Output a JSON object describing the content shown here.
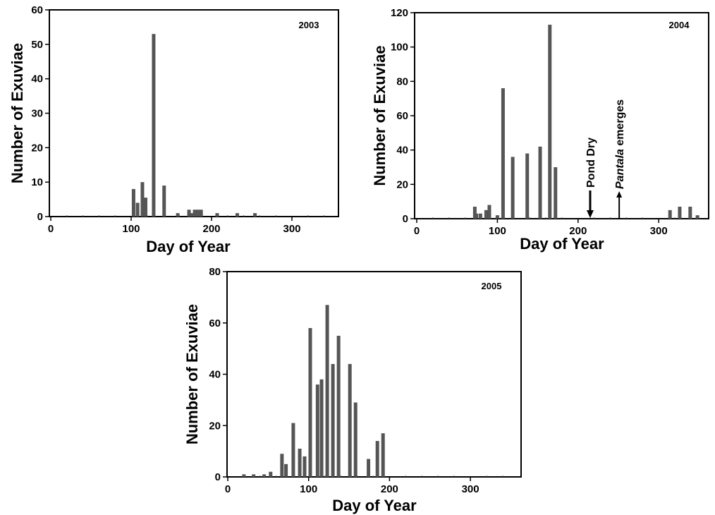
{
  "chart_data": [
    {
      "type": "bar",
      "title": "2003",
      "xlabel": "Day of Year",
      "ylabel": "Number of Exuviae",
      "xlim": [
        0,
        360
      ],
      "ylim": [
        0,
        60
      ],
      "xticks": [
        0,
        100,
        200,
        300
      ],
      "yticks": [
        0,
        10,
        20,
        30,
        40,
        50,
        60
      ],
      "grid": false,
      "points": [
        {
          "x": 103,
          "y": 8
        },
        {
          "x": 108,
          "y": 4
        },
        {
          "x": 114,
          "y": 10
        },
        {
          "x": 118,
          "y": 5.5
        },
        {
          "x": 128,
          "y": 53
        },
        {
          "x": 141,
          "y": 9
        },
        {
          "x": 158,
          "y": 1
        },
        {
          "x": 172,
          "y": 2
        },
        {
          "x": 176,
          "y": 1
        },
        {
          "x": 179,
          "y": 2
        },
        {
          "x": 183,
          "y": 2
        },
        {
          "x": 187,
          "y": 2
        },
        {
          "x": 207,
          "y": 1
        },
        {
          "x": 232,
          "y": 1
        },
        {
          "x": 254,
          "y": 1
        }
      ]
    },
    {
      "type": "bar",
      "title": "2004",
      "xlabel": "Day of Year",
      "ylabel": "Number of Exuviae",
      "xlim": [
        0,
        360
      ],
      "ylim": [
        0,
        120
      ],
      "xticks": [
        0,
        100,
        200,
        300
      ],
      "yticks": [
        0,
        20,
        40,
        60,
        80,
        100,
        120
      ],
      "grid": false,
      "points": [
        {
          "x": 72,
          "y": 7
        },
        {
          "x": 74,
          "y": 3
        },
        {
          "x": 79,
          "y": 3
        },
        {
          "x": 86,
          "y": 5
        },
        {
          "x": 90,
          "y": 8
        },
        {
          "x": 100,
          "y": 2
        },
        {
          "x": 107,
          "y": 76
        },
        {
          "x": 119,
          "y": 36
        },
        {
          "x": 137,
          "y": 38
        },
        {
          "x": 153,
          "y": 42
        },
        {
          "x": 165,
          "y": 113
        },
        {
          "x": 172,
          "y": 30
        },
        {
          "x": 314,
          "y": 5
        },
        {
          "x": 326,
          "y": 7
        },
        {
          "x": 339,
          "y": 7
        },
        {
          "x": 348,
          "y": 2
        }
      ],
      "annotations": [
        {
          "text": "Pond Dry",
          "x": 215,
          "arrow": "down"
        },
        {
          "text_italic": "Pantala",
          "text": " emerges",
          "x": 251,
          "arrow": "up"
        }
      ]
    },
    {
      "type": "bar",
      "title": "2005",
      "xlabel": "Day of Year",
      "ylabel": "Number of Exuviae",
      "xlim": [
        0,
        360
      ],
      "ylim": [
        0,
        80
      ],
      "xticks": [
        0,
        100,
        200,
        300
      ],
      "yticks": [
        0,
        20,
        40,
        60,
        80
      ],
      "grid": false,
      "points": [
        {
          "x": 20,
          "y": 1
        },
        {
          "x": 32,
          "y": 1
        },
        {
          "x": 45,
          "y": 1
        },
        {
          "x": 53,
          "y": 2
        },
        {
          "x": 67,
          "y": 9
        },
        {
          "x": 72,
          "y": 5
        },
        {
          "x": 81,
          "y": 21
        },
        {
          "x": 89,
          "y": 11
        },
        {
          "x": 95,
          "y": 8
        },
        {
          "x": 102,
          "y": 58
        },
        {
          "x": 111,
          "y": 36
        },
        {
          "x": 116,
          "y": 38
        },
        {
          "x": 123,
          "y": 67
        },
        {
          "x": 130,
          "y": 44
        },
        {
          "x": 137,
          "y": 55
        },
        {
          "x": 151,
          "y": 44
        },
        {
          "x": 158,
          "y": 29
        },
        {
          "x": 174,
          "y": 7
        },
        {
          "x": 185,
          "y": 14
        },
        {
          "x": 192,
          "y": 17
        }
      ]
    }
  ]
}
